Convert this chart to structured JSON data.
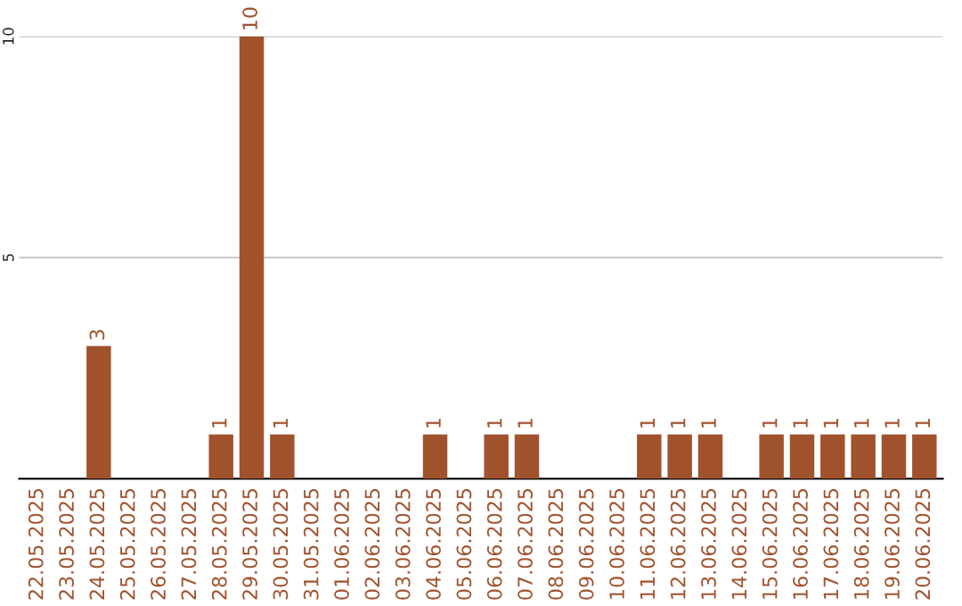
{
  "chart_data": {
    "type": "bar",
    "categories": [
      "22.05.2025",
      "23.05.2025",
      "24.05.2025",
      "25.05.2025",
      "26.05.2025",
      "27.05.2025",
      "28.05.2025",
      "29.05.2025",
      "30.05.2025",
      "31.05.2025",
      "01.06.2025",
      "02.06.2025",
      "03.06.2025",
      "04.06.2025",
      "05.06.2025",
      "06.06.2025",
      "07.06.2025",
      "08.06.2025",
      "09.06.2025",
      "10.06.2025",
      "11.06.2025",
      "12.06.2025",
      "13.06.2025",
      "14.06.2025",
      "15.06.2025",
      "16.06.2025",
      "17.06.2025",
      "18.06.2025",
      "19.06.2025",
      "20.06.2025"
    ],
    "values": [
      0,
      0,
      3,
      0,
      0,
      0,
      1,
      10,
      1,
      0,
      0,
      0,
      0,
      1,
      0,
      1,
      1,
      0,
      0,
      0,
      1,
      1,
      1,
      0,
      1,
      1,
      1,
      1,
      1,
      1
    ],
    "value_labels": [
      null,
      null,
      "3",
      null,
      null,
      null,
      "1",
      "10",
      "1",
      null,
      null,
      null,
      null,
      "1",
      null,
      "1",
      "1",
      null,
      null,
      null,
      "1",
      "1",
      "1",
      null,
      "1",
      "1",
      "1",
      "1",
      "1",
      "1"
    ],
    "color": "#a0522d",
    "ylim": [
      0,
      10
    ],
    "yticks": [
      5,
      10
    ],
    "grid": "y",
    "legend": false
  }
}
